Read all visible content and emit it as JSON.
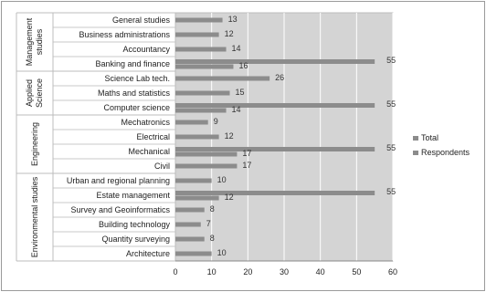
{
  "chart_data": {
    "type": "bar",
    "orientation": "horizontal",
    "xlim": [
      0,
      60
    ],
    "x_ticks": [
      0,
      10,
      20,
      30,
      40,
      50,
      60
    ],
    "grid": true,
    "legend_position": "right",
    "colors": {
      "plot_bg": "#d4d4d4",
      "bar": "#8c8c8c",
      "grid": "#ffffff",
      "border": "#bdbdbd"
    },
    "series": [
      {
        "name": "Total"
      },
      {
        "name": "Respondents"
      }
    ],
    "groups": [
      {
        "label": "Management studies",
        "items": [
          {
            "category": "General studies",
            "respondents": 13
          },
          {
            "category": "Business administrations",
            "respondents": 12
          },
          {
            "category": "Accountancy",
            "respondents": 14
          },
          {
            "category": "Banking and finance",
            "respondents": 16,
            "total": 55
          }
        ]
      },
      {
        "label": "Applied Science",
        "items": [
          {
            "category": "Science Lab tech.",
            "respondents": 26
          },
          {
            "category": "Maths and statistics",
            "respondents": 15
          },
          {
            "category": "Computer science",
            "respondents": 14,
            "total": 55
          }
        ]
      },
      {
        "label": "Engineering",
        "items": [
          {
            "category": "Mechatronics",
            "respondents": 9
          },
          {
            "category": "Electrical",
            "respondents": 12
          },
          {
            "category": "Mechanical",
            "respondents": 17,
            "total": 55
          },
          {
            "category": "Civil",
            "respondents": 17
          }
        ]
      },
      {
        "label": "Environmental studies",
        "items": [
          {
            "category": "Urban and regional planning",
            "respondents": 10
          },
          {
            "category": "Estate management",
            "respondents": 12,
            "total": 55
          },
          {
            "category": "Survey and Geoinformatics",
            "respondents": 8
          },
          {
            "category": "Building technology",
            "respondents": 7
          },
          {
            "category": "Quantity surveying",
            "respondents": 8
          },
          {
            "category": "Architecture",
            "respondents": 10
          }
        ]
      }
    ]
  }
}
